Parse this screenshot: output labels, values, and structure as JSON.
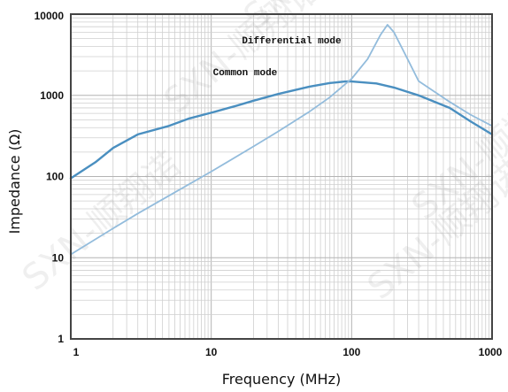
{
  "chart_data": {
    "type": "line",
    "title": "",
    "xlabel": "Frequency (MHz)",
    "ylabel": "Impedance (Ω)",
    "xscale": "log",
    "yscale": "log",
    "xlim": [
      1,
      1000
    ],
    "ylim": [
      1,
      10000
    ],
    "grid": true,
    "x_ticks": [
      "1",
      "10",
      "100",
      "1000"
    ],
    "y_ticks": [
      "1",
      "10",
      "100",
      "1000",
      "10000"
    ],
    "series": [
      {
        "name": "Common mode",
        "color": "#4a8fc0",
        "x": [
          1,
          1.5,
          2,
          3,
          5,
          7,
          10,
          15,
          20,
          30,
          50,
          70,
          90,
          100,
          150,
          200,
          300,
          500,
          700,
          1000
        ],
        "y": [
          95,
          150,
          225,
          330,
          420,
          520,
          610,
          740,
          860,
          1040,
          1280,
          1420,
          1480,
          1480,
          1400,
          1250,
          1000,
          700,
          480,
          330
        ]
      },
      {
        "name": "Differential mode",
        "color": "#93bcdc",
        "x": [
          1,
          2,
          3,
          5,
          10,
          20,
          30,
          50,
          70,
          100,
          130,
          160,
          180,
          200,
          250,
          300,
          500,
          700,
          1000
        ],
        "y": [
          11,
          23,
          35,
          58,
          115,
          235,
          360,
          630,
          950,
          1600,
          2800,
          5500,
          7400,
          6000,
          2800,
          1500,
          830,
          580,
          420
        ]
      }
    ],
    "annotations": [
      {
        "text": "Differential mode",
        "x": 100,
        "y": 5500
      },
      {
        "text": "Common mode",
        "x": 10,
        "y": 2000
      }
    ],
    "watermarks": [
      "SXN-顺翔诺",
      "SXN-顺翔诺",
      "SXN-顺翔诺",
      "SXN-顺翔诺",
      "SXN-顺翔诺"
    ]
  }
}
